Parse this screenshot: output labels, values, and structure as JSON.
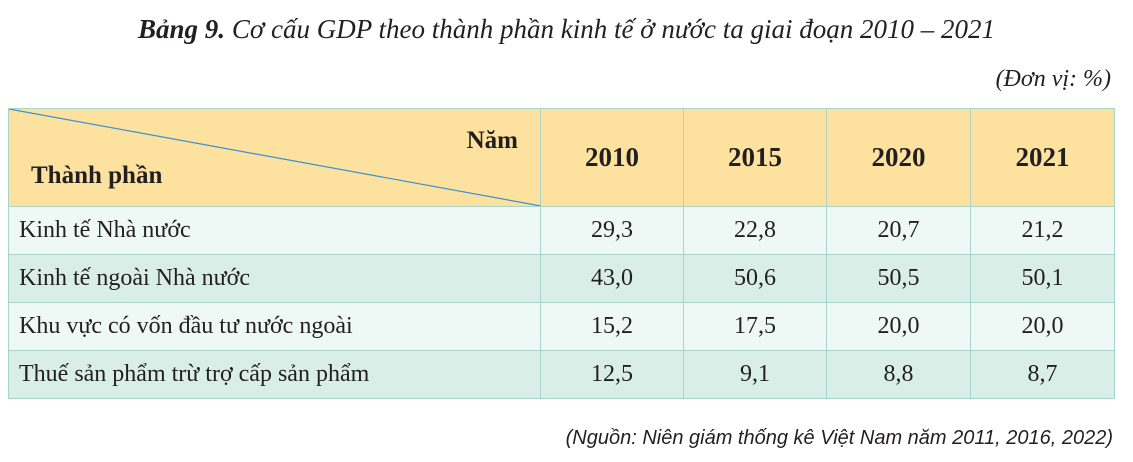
{
  "title": {
    "label": "Bảng 9.",
    "text": "Cơ cấu GDP theo thành phần kinh tế ở nước ta giai đoạn 2010 – 2021"
  },
  "unit": "(Đơn vị: %)",
  "table": {
    "corner": {
      "top": "Năm",
      "bottom": "Thành phần"
    },
    "columns": [
      "2010",
      "2015",
      "2020",
      "2021"
    ],
    "rows": [
      [
        "Kinh tế Nhà nước",
        "29,3",
        "22,8",
        "20,7",
        "21,2"
      ],
      [
        "Kinh tế ngoài Nhà nước",
        "43,0",
        "50,6",
        "50,5",
        "50,1"
      ],
      [
        "Khu vực có vốn đầu tư nước ngoài",
        "15,2",
        "17,5",
        "20,0",
        "20,0"
      ],
      [
        "Thuế sản phẩm trừ trợ cấp sản phẩm",
        "12,5",
        "9,1",
        "8,8",
        "8,7"
      ]
    ]
  },
  "source": "(Nguồn: Niên giám thống kê Việt Nam năm 2011, 2016, 2022)"
}
